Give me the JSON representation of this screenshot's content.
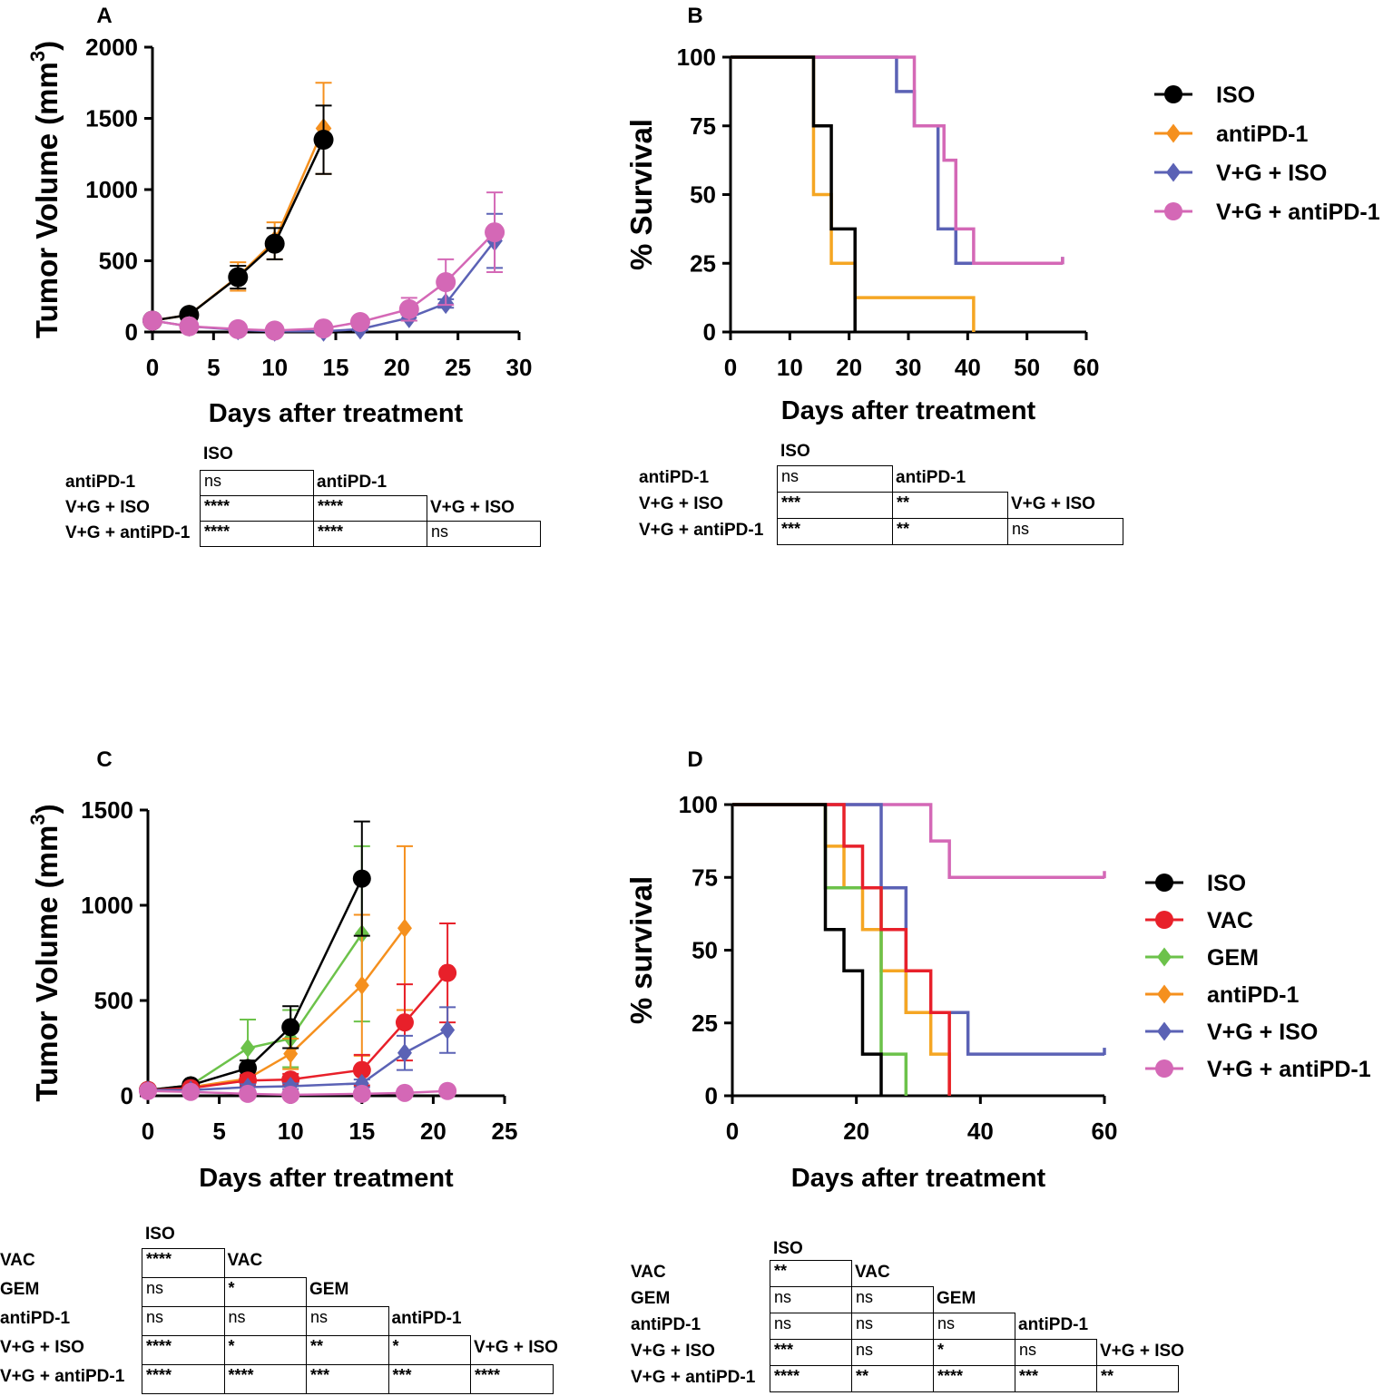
{
  "colors": {
    "ISO": "#000000",
    "antiPD-1": "#f5901e",
    "V+G + ISO": "#5b62b5",
    "V+G + antiPD-1": "#d468b6",
    "VAC": "#e8202a",
    "GEM": "#6cc24a",
    "surv_antiPD-1": "#f5a623"
  },
  "panels": [
    {
      "letter": "A",
      "chart_data": {
        "type": "line",
        "xlabel": "Days after treatment",
        "ylabel": "Tumor Volume (mm",
        "ylabel_sup": "3",
        "ylabel_close": ")",
        "xlim": [
          0,
          30
        ],
        "ylim": [
          0,
          2000
        ],
        "xticks": [
          0,
          5,
          10,
          15,
          20,
          25,
          30
        ],
        "yticks": [
          0,
          500,
          1000,
          1500,
          2000
        ],
        "series": [
          {
            "name": "antiPD-1",
            "marker": "diamond",
            "x": [
              0,
              3,
              7,
              10,
              14
            ],
            "y": [
              80,
              120,
              390,
              640,
              1430
            ],
            "err": [
              15,
              20,
              100,
              130,
              320
            ]
          },
          {
            "name": "ISO",
            "marker": "circle",
            "x": [
              0,
              3,
              7,
              10,
              14
            ],
            "y": [
              80,
              120,
              385,
              620,
              1350
            ],
            "err": [
              15,
              20,
              80,
              110,
              240
            ]
          },
          {
            "name": "V+G + ISO",
            "marker": "diamond",
            "x": [
              0,
              3,
              7,
              10,
              14,
              17,
              21,
              24,
              28
            ],
            "y": [
              80,
              40,
              15,
              5,
              5,
              20,
              100,
              200,
              640
            ],
            "err": [
              10,
              10,
              5,
              5,
              5,
              10,
              20,
              30,
              190
            ]
          },
          {
            "name": "V+G + antiPD-1",
            "marker": "circle",
            "x": [
              0,
              3,
              7,
              10,
              14,
              17,
              21,
              24,
              28
            ],
            "y": [
              80,
              40,
              20,
              10,
              25,
              70,
              160,
              350,
              700
            ],
            "err": [
              10,
              10,
              10,
              10,
              15,
              20,
              80,
              160,
              280
            ]
          }
        ]
      }
    },
    {
      "letter": "B",
      "chart_data": {
        "type": "line",
        "subtype": "survival",
        "xlabel": "Days after treatment",
        "ylabel": "% Survival",
        "xlim": [
          0,
          60
        ],
        "ylim": [
          0,
          100
        ],
        "xticks": [
          0,
          10,
          20,
          30,
          40,
          50,
          60
        ],
        "yticks": [
          0,
          25,
          50,
          75,
          100
        ],
        "series": [
          {
            "name": "V+G + ISO",
            "x": [
              0,
              28,
              31,
              35,
              38,
              56
            ],
            "y": [
              100,
              87.5,
              75,
              37.5,
              25,
              25
            ],
            "censor_end": true
          },
          {
            "name": "V+G + antiPD-1",
            "x": [
              0,
              31,
              36,
              38,
              41,
              56
            ],
            "y": [
              100,
              75,
              62.5,
              37.5,
              25,
              25
            ],
            "censor_end": true
          },
          {
            "name": "antiPD-1",
            "x": [
              0,
              14,
              17,
              21,
              41
            ],
            "y": [
              100,
              50,
              25,
              12.5,
              0
            ]
          },
          {
            "name": "ISO",
            "x": [
              0,
              14,
              17,
              21
            ],
            "y": [
              100,
              75,
              37.5,
              0
            ]
          }
        ],
        "legend": [
          {
            "label": "ISO",
            "marker": "circle",
            "key": "ISO"
          },
          {
            "label": "antiPD-1",
            "marker": "diamond",
            "key": "antiPD-1"
          },
          {
            "label": "V+G + ISO",
            "marker": "diamond",
            "key": "V+G + ISO"
          },
          {
            "label": "V+G + antiPD-1",
            "marker": "circle",
            "key": "V+G + antiPD-1"
          }
        ]
      }
    },
    {
      "letter": "C",
      "chart_data": {
        "type": "line",
        "xlabel": "Days after treatment",
        "ylabel": "Tumor Volume (mm",
        "ylabel_sup": "3",
        "ylabel_close": ")",
        "xlim": [
          0,
          25
        ],
        "ylim": [
          0,
          1500
        ],
        "xticks": [
          0,
          5,
          10,
          15,
          20,
          25
        ],
        "yticks": [
          0,
          500,
          1000,
          1500
        ],
        "series": [
          {
            "name": "GEM",
            "marker": "diamond",
            "x": [
              0,
              3,
              7,
              10,
              15
            ],
            "y": [
              30,
              55,
              250,
              300,
              850
            ],
            "err": [
              10,
              15,
              150,
              150,
              460
            ]
          },
          {
            "name": "antiPD-1",
            "marker": "diamond",
            "x": [
              0,
              3,
              7,
              10,
              15,
              18
            ],
            "y": [
              30,
              45,
              90,
              220,
              580,
              880
            ],
            "err": [
              10,
              10,
              40,
              80,
              370,
              430
            ]
          },
          {
            "name": "ISO",
            "marker": "circle",
            "x": [
              0,
              3,
              7,
              10,
              15
            ],
            "y": [
              30,
              55,
              145,
              360,
              1140
            ],
            "err": [
              10,
              15,
              40,
              110,
              300
            ]
          },
          {
            "name": "VAC",
            "marker": "circle",
            "x": [
              0,
              3,
              7,
              10,
              15,
              18,
              21
            ],
            "y": [
              30,
              40,
              80,
              85,
              135,
              385,
              645
            ],
            "err": [
              10,
              10,
              30,
              30,
              80,
              200,
              260
            ]
          },
          {
            "name": "V+G + ISO",
            "marker": "diamond",
            "x": [
              0,
              3,
              7,
              10,
              15,
              18,
              21
            ],
            "y": [
              30,
              30,
              45,
              50,
              65,
              225,
              345
            ],
            "err": [
              10,
              10,
              15,
              15,
              20,
              90,
              120
            ]
          },
          {
            "name": "V+G + antiPD-1",
            "marker": "circle",
            "x": [
              0,
              3,
              7,
              10,
              15,
              18,
              21
            ],
            "y": [
              25,
              20,
              10,
              5,
              10,
              15,
              25
            ],
            "err": [
              5,
              5,
              5,
              5,
              5,
              10,
              10
            ]
          }
        ]
      }
    },
    {
      "letter": "D",
      "chart_data": {
        "type": "line",
        "subtype": "survival",
        "xlabel": "Days after treatment",
        "ylabel": "% survival",
        "xlim": [
          0,
          60
        ],
        "ylim": [
          0,
          100
        ],
        "xticks": [
          0,
          20,
          40,
          60
        ],
        "yticks": [
          0,
          25,
          50,
          75,
          100
        ],
        "series": [
          {
            "name": "V+G + antiPD-1",
            "x": [
              0,
              32,
              35,
              60
            ],
            "y": [
              100,
              87.5,
              75,
              75
            ],
            "censor_end": true
          },
          {
            "name": "V+G + ISO",
            "x": [
              0,
              24,
              28,
              38,
              60
            ],
            "y": [
              100,
              71.4,
              28.6,
              14.3,
              14.3
            ],
            "censor_end": true
          },
          {
            "name": "antiPD-1",
            "x": [
              0,
              15,
              18,
              21,
              24,
              28,
              32,
              35
            ],
            "y": [
              100,
              85.7,
              71.4,
              57.1,
              42.9,
              28.6,
              14.3,
              0
            ]
          },
          {
            "name": "GEM",
            "x": [
              0,
              15,
              24,
              28
            ],
            "y": [
              100,
              71.4,
              14.3,
              0
            ]
          },
          {
            "name": "VAC",
            "x": [
              0,
              18,
              21,
              24,
              28,
              32,
              35
            ],
            "y": [
              100,
              85.7,
              71.4,
              57.1,
              42.9,
              28.6,
              0
            ]
          },
          {
            "name": "ISO",
            "x": [
              0,
              15,
              18,
              21,
              24
            ],
            "y": [
              100,
              57.1,
              42.9,
              14.3,
              0
            ]
          }
        ],
        "legend": [
          {
            "label": "ISO",
            "marker": "circle",
            "key": "ISO"
          },
          {
            "label": "VAC",
            "marker": "circle",
            "key": "VAC"
          },
          {
            "label": "GEM",
            "marker": "diamond",
            "key": "GEM"
          },
          {
            "label": "antiPD-1",
            "marker": "diamond",
            "key": "antiPD-1"
          },
          {
            "label": "V+G + ISO",
            "marker": "diamond",
            "key": "V+G + ISO"
          },
          {
            "label": "V+G + antiPD-1",
            "marker": "circle",
            "key": "V+G + antiPD-1"
          }
        ]
      }
    }
  ],
  "tables": [
    {
      "groups": [
        "ISO",
        "antiPD-1",
        "V+G + ISO",
        "V+G + antiPD-1"
      ],
      "cells": [
        [
          "ns"
        ],
        [
          "****",
          "****"
        ],
        [
          "****",
          "****",
          "ns"
        ]
      ]
    },
    {
      "groups": [
        "ISO",
        "antiPD-1",
        "V+G + ISO",
        "V+G + antiPD-1"
      ],
      "cells": [
        [
          "ns"
        ],
        [
          "***",
          "**"
        ],
        [
          "***",
          "**",
          "ns"
        ]
      ]
    },
    {
      "groups": [
        "ISO",
        "VAC",
        "GEM",
        "antiPD-1",
        "V+G + ISO",
        "V+G + antiPD-1"
      ],
      "cells": [
        [
          "****"
        ],
        [
          "ns",
          "*"
        ],
        [
          "ns",
          "ns",
          "ns"
        ],
        [
          "****",
          "*",
          "**",
          "*"
        ],
        [
          "****",
          "****",
          "***",
          "***",
          "****"
        ]
      ]
    },
    {
      "groups": [
        "ISO",
        "VAC",
        "GEM",
        "antiPD-1",
        "V+G + ISO",
        "V+G + antiPD-1"
      ],
      "cells": [
        [
          "**"
        ],
        [
          "ns",
          "ns"
        ],
        [
          "ns",
          "ns",
          "ns"
        ],
        [
          "***",
          "ns",
          "*",
          "ns"
        ],
        [
          "****",
          "**",
          "****",
          "***",
          "**"
        ]
      ]
    }
  ]
}
